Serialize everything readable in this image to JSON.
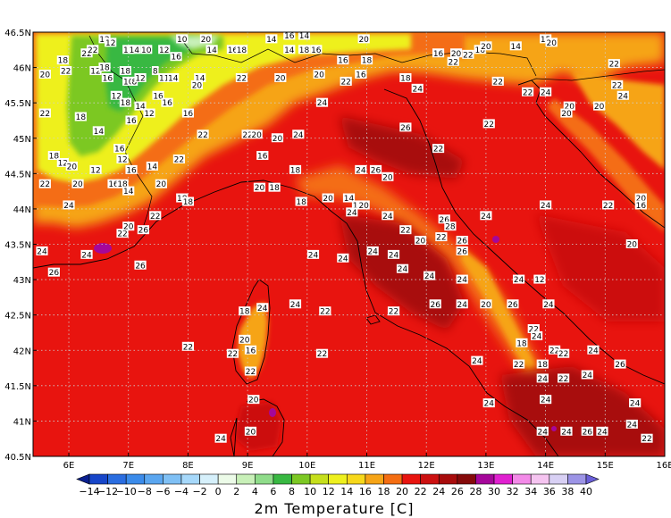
{
  "map": {
    "variable_title": "2m Temperature [C]",
    "lon_min": 5.4,
    "lon_max": 16.0,
    "lat_min": 40.5,
    "lat_max": 46.5,
    "lon_ticks": [
      6,
      7,
      8,
      9,
      10,
      11,
      12,
      13,
      14,
      15,
      16
    ],
    "lon_tick_labels": [
      "6E",
      "7E",
      "8E",
      "9E",
      "10E",
      "11E",
      "12E",
      "13E",
      "14E",
      "15E",
      "16E"
    ],
    "lat_ticks": [
      46.5,
      46,
      45.5,
      45,
      44.5,
      44,
      43.5,
      43,
      42.5,
      42,
      41.5,
      41,
      40.5
    ],
    "lat_tick_labels": [
      "46.5N",
      "46N",
      "45.5N",
      "45N",
      "44.5N",
      "44N",
      "43.5N",
      "43N",
      "42.5N",
      "42N",
      "41.5N",
      "41N",
      "40.5N"
    ],
    "grid": true,
    "background_color": "#e8140f"
  },
  "colorbar": {
    "labels": [
      "-14",
      "-12",
      "-10",
      "-8",
      "-6",
      "-4",
      "-2",
      "0",
      "2",
      "4",
      "6",
      "8",
      "10",
      "12",
      "14",
      "16",
      "18",
      "20",
      "22",
      "24",
      "26",
      "28",
      "30",
      "32",
      "34",
      "36",
      "38",
      "40"
    ],
    "colors": [
      "#0a1f8f",
      "#1746c9",
      "#2a6de0",
      "#3b8bea",
      "#5aa6f0",
      "#7fc0f5",
      "#a6d8fa",
      "#d6f0fb",
      "#ecfbe8",
      "#c8f0b8",
      "#8fdc8a",
      "#38b842",
      "#7cc824",
      "#c6df1c",
      "#eef01e",
      "#f7d81b",
      "#f6a417",
      "#f46d12",
      "#e8140f",
      "#cc1010",
      "#a80c0c",
      "#850a0a",
      "#a5079a",
      "#e020d0",
      "#f38ae8",
      "#f5c4f0",
      "#d8d0f4",
      "#9c94e6",
      "#6a5fd8"
    ]
  },
  "regions": [
    {
      "name": "alps-north",
      "color": "#f6a417"
    },
    {
      "name": "alps-band",
      "color": "#f46d12"
    },
    {
      "name": "alps-green",
      "color": "#7cc824"
    },
    {
      "name": "apennines",
      "color": "#f46d12"
    },
    {
      "name": "dark-interior",
      "color": "#a80c0c"
    }
  ],
  "station_values": [
    {
      "lon": 6.6,
      "lat": 46.4,
      "text": "12"
    },
    {
      "lon": 5.9,
      "lat": 46.1,
      "text": "18"
    },
    {
      "lon": 6.3,
      "lat": 46.2,
      "text": "22"
    },
    {
      "lon": 6.4,
      "lat": 46.25,
      "text": "22"
    },
    {
      "lon": 6.7,
      "lat": 46.35,
      "text": "12"
    },
    {
      "lon": 7.0,
      "lat": 46.25,
      "text": "10"
    },
    {
      "lon": 7.1,
      "lat": 46.25,
      "text": "14"
    },
    {
      "lon": 7.3,
      "lat": 46.25,
      "text": "10"
    },
    {
      "lon": 7.6,
      "lat": 46.25,
      "text": "12"
    },
    {
      "lon": 7.8,
      "lat": 46.15,
      "text": "16"
    },
    {
      "lon": 7.9,
      "lat": 46.4,
      "text": "10"
    },
    {
      "lon": 8.3,
      "lat": 46.4,
      "text": "20"
    },
    {
      "lon": 8.4,
      "lat": 46.25,
      "text": "14"
    },
    {
      "lon": 8.75,
      "lat": 46.25,
      "text": "16"
    },
    {
      "lon": 8.9,
      "lat": 46.25,
      "text": "18"
    },
    {
      "lon": 9.4,
      "lat": 46.4,
      "text": "14"
    },
    {
      "lon": 9.7,
      "lat": 46.25,
      "text": "14"
    },
    {
      "lon": 9.95,
      "lat": 46.25,
      "text": "18"
    },
    {
      "lon": 10.15,
      "lat": 46.25,
      "text": "16"
    },
    {
      "lon": 9.7,
      "lat": 46.45,
      "text": "16"
    },
    {
      "lon": 9.95,
      "lat": 46.45,
      "text": "14"
    },
    {
      "lon": 10.6,
      "lat": 46.1,
      "text": "16"
    },
    {
      "lon": 10.95,
      "lat": 46.4,
      "text": "20"
    },
    {
      "lon": 11.0,
      "lat": 46.1,
      "text": "18"
    },
    {
      "lon": 11.7,
      "lat": 46.5,
      "text": "12"
    },
    {
      "lon": 12.2,
      "lat": 46.2,
      "text": "16"
    },
    {
      "lon": 12.45,
      "lat": 46.08,
      "text": "22"
    },
    {
      "lon": 12.5,
      "lat": 46.2,
      "text": "20"
    },
    {
      "lon": 12.7,
      "lat": 46.18,
      "text": "22"
    },
    {
      "lon": 12.9,
      "lat": 46.25,
      "text": "16"
    },
    {
      "lon": 13.0,
      "lat": 46.3,
      "text": "20"
    },
    {
      "lon": 13.5,
      "lat": 46.3,
      "text": "14"
    },
    {
      "lon": 14.0,
      "lat": 46.4,
      "text": "15"
    },
    {
      "lon": 14.1,
      "lat": 46.35,
      "text": "20"
    },
    {
      "lon": 15.15,
      "lat": 46.05,
      "text": "22"
    },
    {
      "lon": 15.2,
      "lat": 45.75,
      "text": "22"
    },
    {
      "lon": 15.3,
      "lat": 45.6,
      "text": "24"
    },
    {
      "lon": 5.6,
      "lat": 45.9,
      "text": "20"
    },
    {
      "lon": 5.95,
      "lat": 45.95,
      "text": "22"
    },
    {
      "lon": 6.45,
      "lat": 45.95,
      "text": "12"
    },
    {
      "lon": 6.6,
      "lat": 46.0,
      "text": "18"
    },
    {
      "lon": 6.65,
      "lat": 45.85,
      "text": "16"
    },
    {
      "lon": 6.95,
      "lat": 45.95,
      "text": "18"
    },
    {
      "lon": 7.0,
      "lat": 45.8,
      "text": "10"
    },
    {
      "lon": 7.1,
      "lat": 45.8,
      "text": "8"
    },
    {
      "lon": 7.2,
      "lat": 45.85,
      "text": "12"
    },
    {
      "lon": 7.45,
      "lat": 45.95,
      "text": "8"
    },
    {
      "lon": 7.6,
      "lat": 45.85,
      "text": "11"
    },
    {
      "lon": 7.75,
      "lat": 45.85,
      "text": "14"
    },
    {
      "lon": 8.2,
      "lat": 45.85,
      "text": "14"
    },
    {
      "lon": 8.15,
      "lat": 45.75,
      "text": "20"
    },
    {
      "lon": 8.9,
      "lat": 45.85,
      "text": "22"
    },
    {
      "lon": 9.55,
      "lat": 45.85,
      "text": "20"
    },
    {
      "lon": 10.2,
      "lat": 45.9,
      "text": "20"
    },
    {
      "lon": 10.65,
      "lat": 45.8,
      "text": "22"
    },
    {
      "lon": 10.9,
      "lat": 45.9,
      "text": "16"
    },
    {
      "lon": 11.65,
      "lat": 45.85,
      "text": "18"
    },
    {
      "lon": 11.85,
      "lat": 45.7,
      "text": "24"
    },
    {
      "lon": 13.2,
      "lat": 45.8,
      "text": "22"
    },
    {
      "lon": 13.7,
      "lat": 45.65,
      "text": "22"
    },
    {
      "lon": 14.0,
      "lat": 45.65,
      "text": "24"
    },
    {
      "lon": 14.4,
      "lat": 45.45,
      "text": "20"
    },
    {
      "lon": 14.35,
      "lat": 45.35,
      "text": "20"
    },
    {
      "lon": 14.9,
      "lat": 45.45,
      "text": "20"
    },
    {
      "lon": 5.6,
      "lat": 45.35,
      "text": "22"
    },
    {
      "lon": 6.2,
      "lat": 45.3,
      "text": "18"
    },
    {
      "lon": 6.5,
      "lat": 45.1,
      "text": "14"
    },
    {
      "lon": 6.8,
      "lat": 45.6,
      "text": "12"
    },
    {
      "lon": 6.95,
      "lat": 45.5,
      "text": "18"
    },
    {
      "lon": 7.2,
      "lat": 45.45,
      "text": "14"
    },
    {
      "lon": 7.35,
      "lat": 45.35,
      "text": "12"
    },
    {
      "lon": 7.05,
      "lat": 45.25,
      "text": "16"
    },
    {
      "lon": 7.5,
      "lat": 45.6,
      "text": "16"
    },
    {
      "lon": 7.65,
      "lat": 45.5,
      "text": "16"
    },
    {
      "lon": 8.0,
      "lat": 45.35,
      "text": "16"
    },
    {
      "lon": 10.25,
      "lat": 45.5,
      "text": "24"
    },
    {
      "lon": 8.25,
      "lat": 45.05,
      "text": "22"
    },
    {
      "lon": 9.0,
      "lat": 45.05,
      "text": "22"
    },
    {
      "lon": 9.15,
      "lat": 45.05,
      "text": "20"
    },
    {
      "lon": 9.5,
      "lat": 45.0,
      "text": "20"
    },
    {
      "lon": 9.85,
      "lat": 45.05,
      "text": "24"
    },
    {
      "lon": 11.65,
      "lat": 45.15,
      "text": "26"
    },
    {
      "lon": 12.2,
      "lat": 44.85,
      "text": "22"
    },
    {
      "lon": 13.05,
      "lat": 45.2,
      "text": "22"
    },
    {
      "lon": 5.75,
      "lat": 44.75,
      "text": "18"
    },
    {
      "lon": 5.9,
      "lat": 44.65,
      "text": "12"
    },
    {
      "lon": 6.05,
      "lat": 44.6,
      "text": "20"
    },
    {
      "lon": 6.45,
      "lat": 44.55,
      "text": "12"
    },
    {
      "lon": 6.85,
      "lat": 44.85,
      "text": "16"
    },
    {
      "lon": 6.9,
      "lat": 44.7,
      "text": "12"
    },
    {
      "lon": 7.05,
      "lat": 44.55,
      "text": "16"
    },
    {
      "lon": 7.4,
      "lat": 44.6,
      "text": "14"
    },
    {
      "lon": 7.85,
      "lat": 44.7,
      "text": "22"
    },
    {
      "lon": 9.25,
      "lat": 44.75,
      "text": "16"
    },
    {
      "lon": 9.8,
      "lat": 44.55,
      "text": "18"
    },
    {
      "lon": 10.9,
      "lat": 44.55,
      "text": "24"
    },
    {
      "lon": 11.15,
      "lat": 44.55,
      "text": "26"
    },
    {
      "lon": 11.35,
      "lat": 44.45,
      "text": "20"
    },
    {
      "lon": 5.6,
      "lat": 44.35,
      "text": "22"
    },
    {
      "lon": 6.15,
      "lat": 44.35,
      "text": "20"
    },
    {
      "lon": 6.75,
      "lat": 44.35,
      "text": "16"
    },
    {
      "lon": 6.9,
      "lat": 44.35,
      "text": "18"
    },
    {
      "lon": 7.0,
      "lat": 44.25,
      "text": "14"
    },
    {
      "lon": 7.55,
      "lat": 44.35,
      "text": "20"
    },
    {
      "lon": 7.9,
      "lat": 44.15,
      "text": "18"
    },
    {
      "lon": 8.0,
      "lat": 44.1,
      "text": "18"
    },
    {
      "lon": 9.2,
      "lat": 44.3,
      "text": "20"
    },
    {
      "lon": 9.45,
      "lat": 44.3,
      "text": "18"
    },
    {
      "lon": 9.9,
      "lat": 44.1,
      "text": "18"
    },
    {
      "lon": 10.35,
      "lat": 44.15,
      "text": "20"
    },
    {
      "lon": 10.7,
      "lat": 44.15,
      "text": "14"
    },
    {
      "lon": 10.85,
      "lat": 44.05,
      "text": "18"
    },
    {
      "lon": 10.95,
      "lat": 44.05,
      "text": "20"
    },
    {
      "lon": 6.0,
      "lat": 44.05,
      "text": "24"
    },
    {
      "lon": 7.45,
      "lat": 43.9,
      "text": "22"
    },
    {
      "lon": 10.75,
      "lat": 43.95,
      "text": "24"
    },
    {
      "lon": 11.35,
      "lat": 43.9,
      "text": "24"
    },
    {
      "lon": 12.3,
      "lat": 43.85,
      "text": "26"
    },
    {
      "lon": 12.4,
      "lat": 43.75,
      "text": "28"
    },
    {
      "lon": 13.0,
      "lat": 43.9,
      "text": "24"
    },
    {
      "lon": 14.0,
      "lat": 44.05,
      "text": "24"
    },
    {
      "lon": 15.05,
      "lat": 44.05,
      "text": "22"
    },
    {
      "lon": 15.6,
      "lat": 44.15,
      "text": "20"
    },
    {
      "lon": 15.6,
      "lat": 44.05,
      "text": "16"
    },
    {
      "lon": 16.0,
      "lat": 43.95,
      "text": "22"
    },
    {
      "lon": 6.9,
      "lat": 43.65,
      "text": "22"
    },
    {
      "lon": 7.0,
      "lat": 43.75,
      "text": "20"
    },
    {
      "lon": 7.25,
      "lat": 43.7,
      "text": "26"
    },
    {
      "lon": 11.65,
      "lat": 43.7,
      "text": "22"
    },
    {
      "lon": 11.9,
      "lat": 43.55,
      "text": "20"
    },
    {
      "lon": 12.25,
      "lat": 43.6,
      "text": "22"
    },
    {
      "lon": 12.6,
      "lat": 43.55,
      "text": "26"
    },
    {
      "lon": 12.6,
      "lat": 43.4,
      "text": "26"
    },
    {
      "lon": 15.45,
      "lat": 43.5,
      "text": "20"
    },
    {
      "lon": 5.55,
      "lat": 43.4,
      "text": "24"
    },
    {
      "lon": 6.3,
      "lat": 43.35,
      "text": "24"
    },
    {
      "lon": 7.2,
      "lat": 43.2,
      "text": "26"
    },
    {
      "lon": 10.1,
      "lat": 43.35,
      "text": "24"
    },
    {
      "lon": 10.6,
      "lat": 43.3,
      "text": "24"
    },
    {
      "lon": 11.1,
      "lat": 43.4,
      "text": "24"
    },
    {
      "lon": 11.45,
      "lat": 43.35,
      "text": "24"
    },
    {
      "lon": 11.6,
      "lat": 43.15,
      "text": "24"
    },
    {
      "lon": 12.05,
      "lat": 43.05,
      "text": "24"
    },
    {
      "lon": 12.6,
      "lat": 43.0,
      "text": "24"
    },
    {
      "lon": 13.55,
      "lat": 43.0,
      "text": "24"
    },
    {
      "lon": 13.9,
      "lat": 43.0,
      "text": "12"
    },
    {
      "lon": 5.75,
      "lat": 43.1,
      "text": "26"
    },
    {
      "lon": 9.8,
      "lat": 42.65,
      "text": "24"
    },
    {
      "lon": 10.3,
      "lat": 42.55,
      "text": "22"
    },
    {
      "lon": 11.45,
      "lat": 42.55,
      "text": "22"
    },
    {
      "lon": 12.15,
      "lat": 42.65,
      "text": "26"
    },
    {
      "lon": 12.6,
      "lat": 42.65,
      "text": "24"
    },
    {
      "lon": 13.0,
      "lat": 42.65,
      "text": "20"
    },
    {
      "lon": 13.45,
      "lat": 42.65,
      "text": "26"
    },
    {
      "lon": 14.05,
      "lat": 42.65,
      "text": "24"
    },
    {
      "lon": 8.95,
      "lat": 42.55,
      "text": "18"
    },
    {
      "lon": 9.25,
      "lat": 42.6,
      "text": "24"
    },
    {
      "lon": 13.8,
      "lat": 42.3,
      "text": "22"
    },
    {
      "lon": 13.85,
      "lat": 42.2,
      "text": "24"
    },
    {
      "lon": 13.6,
      "lat": 42.1,
      "text": "18"
    },
    {
      "lon": 14.15,
      "lat": 42.0,
      "text": "22"
    },
    {
      "lon": 14.8,
      "lat": 42.0,
      "text": "24"
    },
    {
      "lon": 8.0,
      "lat": 42.05,
      "text": "22"
    },
    {
      "lon": 8.95,
      "lat": 42.15,
      "text": "20"
    },
    {
      "lon": 9.05,
      "lat": 42.0,
      "text": "16"
    },
    {
      "lon": 8.75,
      "lat": 41.95,
      "text": "22"
    },
    {
      "lon": 10.25,
      "lat": 41.95,
      "text": "22"
    },
    {
      "lon": 12.85,
      "lat": 41.85,
      "text": "24"
    },
    {
      "lon": 13.55,
      "lat": 41.8,
      "text": "22"
    },
    {
      "lon": 13.95,
      "lat": 41.8,
      "text": "18"
    },
    {
      "lon": 14.3,
      "lat": 41.95,
      "text": "22"
    },
    {
      "lon": 15.25,
      "lat": 41.8,
      "text": "26"
    },
    {
      "lon": 9.05,
      "lat": 41.7,
      "text": "22"
    },
    {
      "lon": 13.95,
      "lat": 41.6,
      "text": "24"
    },
    {
      "lon": 14.3,
      "lat": 41.6,
      "text": "22"
    },
    {
      "lon": 14.7,
      "lat": 41.65,
      "text": "24"
    },
    {
      "lon": 9.1,
      "lat": 41.3,
      "text": "20"
    },
    {
      "lon": 13.05,
      "lat": 41.25,
      "text": "24"
    },
    {
      "lon": 14.0,
      "lat": 41.3,
      "text": "24"
    },
    {
      "lon": 15.5,
      "lat": 41.25,
      "text": "24"
    },
    {
      "lon": 13.95,
      "lat": 40.85,
      "text": "24"
    },
    {
      "lon": 14.35,
      "lat": 40.85,
      "text": "24"
    },
    {
      "lon": 14.7,
      "lat": 40.85,
      "text": "26"
    },
    {
      "lon": 14.95,
      "lat": 40.85,
      "text": "24"
    },
    {
      "lon": 15.45,
      "lat": 40.95,
      "text": "24"
    },
    {
      "lon": 8.55,
      "lat": 40.75,
      "text": "24"
    },
    {
      "lon": 9.05,
      "lat": 40.85,
      "text": "20"
    },
    {
      "lon": 15.7,
      "lat": 40.75,
      "text": "22"
    }
  ]
}
